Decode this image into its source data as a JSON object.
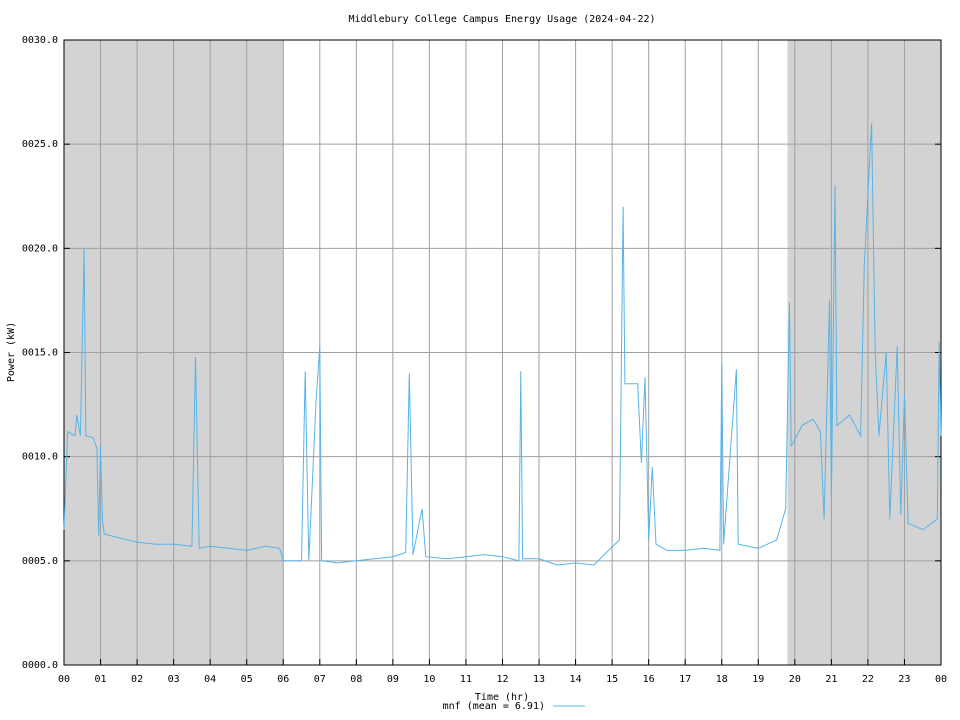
{
  "chart_data": {
    "type": "line",
    "title": "Middlebury College Campus Energy Usage (2024-04-22)",
    "xlabel": "Time (hr)",
    "ylabel": "Power (kW)",
    "xlim": [
      0,
      24
    ],
    "ylim": [
      0,
      30
    ],
    "xticks": [
      {
        "value": 0,
        "label": "00"
      },
      {
        "value": 1,
        "label": "01"
      },
      {
        "value": 2,
        "label": "02"
      },
      {
        "value": 3,
        "label": "03"
      },
      {
        "value": 4,
        "label": "04"
      },
      {
        "value": 5,
        "label": "05"
      },
      {
        "value": 6,
        "label": "06"
      },
      {
        "value": 7,
        "label": "07"
      },
      {
        "value": 8,
        "label": "08"
      },
      {
        "value": 9,
        "label": "09"
      },
      {
        "value": 10,
        "label": "10"
      },
      {
        "value": 11,
        "label": "11"
      },
      {
        "value": 12,
        "label": "12"
      },
      {
        "value": 13,
        "label": "13"
      },
      {
        "value": 14,
        "label": "14"
      },
      {
        "value": 15,
        "label": "15"
      },
      {
        "value": 16,
        "label": "16"
      },
      {
        "value": 17,
        "label": "17"
      },
      {
        "value": 18,
        "label": "18"
      },
      {
        "value": 19,
        "label": "19"
      },
      {
        "value": 20,
        "label": "20"
      },
      {
        "value": 21,
        "label": "21"
      },
      {
        "value": 22,
        "label": "22"
      },
      {
        "value": 23,
        "label": "23"
      },
      {
        "value": 24,
        "label": "00"
      }
    ],
    "yticks": [
      {
        "value": 0,
        "label": "0000.0"
      },
      {
        "value": 5,
        "label": "0005.0"
      },
      {
        "value": 10,
        "label": "0010.0"
      },
      {
        "value": 15,
        "label": "0015.0"
      },
      {
        "value": 20,
        "label": "0020.0"
      },
      {
        "value": 25,
        "label": "0025.0"
      },
      {
        "value": 30,
        "label": "0030.0"
      }
    ],
    "grid": true,
    "shaded": [
      [
        0,
        6
      ],
      [
        19.8,
        24
      ]
    ],
    "shade_color": "#d3d3d3",
    "legend": "bottom",
    "x": [
      0.0,
      0.1,
      0.3,
      0.35,
      0.45,
      0.55,
      0.6,
      0.8,
      0.9,
      0.95,
      1.0,
      1.05,
      1.1,
      1.5,
      2.0,
      2.5,
      3.0,
      3.5,
      3.6,
      3.7,
      4.0,
      4.5,
      5.0,
      5.5,
      5.9,
      6.0,
      6.5,
      6.6,
      6.7,
      6.9,
      7.0,
      7.05,
      7.5,
      8.0,
      8.5,
      9.0,
      9.35,
      9.45,
      9.55,
      9.8,
      9.9,
      10.5,
      11.0,
      11.5,
      12.0,
      12.45,
      12.5,
      12.55,
      13.0,
      13.5,
      14.0,
      14.5,
      14.9,
      15.2,
      15.3,
      15.35,
      15.7,
      15.8,
      15.9,
      16.0,
      16.1,
      16.2,
      16.5,
      17.0,
      17.5,
      17.95,
      18.0,
      18.05,
      18.4,
      18.45,
      19.0,
      19.5,
      19.75,
      19.85,
      19.9,
      20.2,
      20.5,
      20.7,
      20.8,
      20.95,
      21.0,
      21.1,
      21.15,
      21.5,
      21.8,
      21.9,
      22.1,
      22.2,
      22.3,
      22.5,
      22.6,
      22.8,
      22.9,
      23.0,
      23.1,
      23.5,
      23.9,
      23.95,
      24.0
    ],
    "series": [
      {
        "name": "mnf (mean = 6.91)",
        "color": "#56b4e9",
        "values": [
          6.5,
          11.2,
          11.0,
          12.0,
          11.0,
          20.0,
          11.0,
          10.9,
          10.4,
          6.2,
          10.5,
          7.0,
          6.3,
          6.1,
          5.9,
          5.8,
          5.8,
          5.7,
          14.8,
          5.6,
          5.7,
          5.6,
          5.5,
          5.7,
          5.6,
          5.0,
          5.0,
          14.1,
          5.0,
          12.7,
          15.3,
          5.0,
          4.9,
          5.0,
          5.1,
          5.2,
          5.4,
          14.0,
          5.3,
          7.5,
          5.2,
          5.1,
          5.2,
          5.3,
          5.2,
          5.0,
          14.1,
          5.1,
          5.1,
          4.8,
          4.9,
          4.8,
          5.5,
          6.0,
          22.0,
          13.5,
          13.5,
          9.7,
          13.8,
          6.0,
          9.5,
          5.8,
          5.5,
          5.5,
          5.6,
          5.5,
          14.5,
          5.8,
          14.2,
          5.8,
          5.6,
          6.0,
          7.5,
          17.4,
          10.5,
          11.5,
          11.8,
          11.2,
          7.0,
          17.5,
          8.0,
          23.0,
          11.5,
          12.0,
          11.0,
          19.2,
          26.0,
          15.0,
          11.0,
          15.0,
          7.0,
          15.3,
          7.2,
          13.0,
          6.8,
          6.5,
          7.0,
          15.5,
          11.0
        ]
      }
    ]
  }
}
